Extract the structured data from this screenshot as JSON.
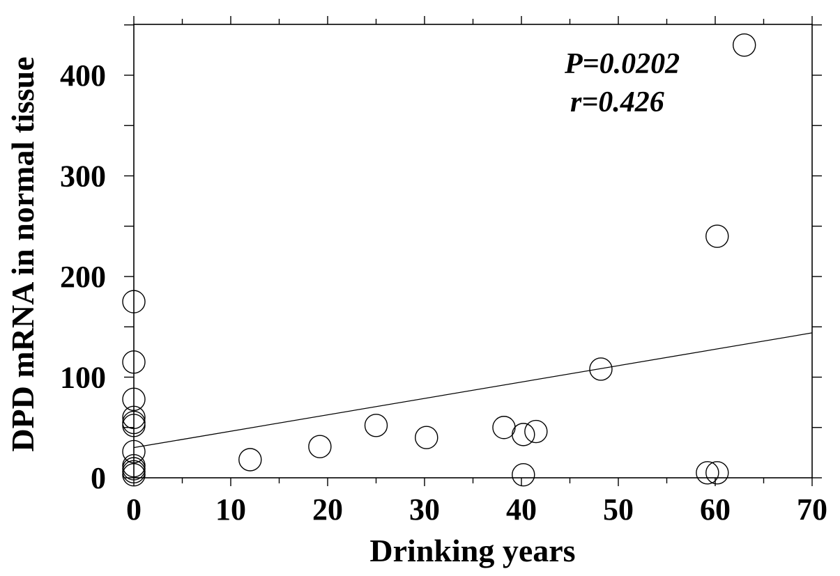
{
  "chart_data": {
    "type": "scatter",
    "title": "",
    "xlabel": "Drinking years",
    "ylabel": "DPD mRNA  in normal tissue",
    "xlim": [
      0,
      70
    ],
    "ylim": [
      0,
      450
    ],
    "x_ticks": [
      0,
      10,
      20,
      30,
      40,
      50,
      60,
      70
    ],
    "x_tick_labels": [
      "0",
      "10",
      "20",
      "30",
      "40",
      "50",
      "60",
      "70"
    ],
    "y_ticks": [
      0,
      100,
      200,
      300,
      400
    ],
    "y_tick_labels": [
      "0",
      "100",
      "200",
      "300",
      "400"
    ],
    "x_minor_step": 5,
    "y_minor_step": 50,
    "grid": false,
    "series": [
      {
        "points": [
          {
            "x": 0,
            "y": 175
          },
          {
            "x": 0,
            "y": 115
          },
          {
            "x": 0,
            "y": 78
          },
          {
            "x": 0,
            "y": 60
          },
          {
            "x": 0,
            "y": 55
          },
          {
            "x": 0,
            "y": 52
          },
          {
            "x": 0,
            "y": 26
          },
          {
            "x": 0,
            "y": 12
          },
          {
            "x": 0,
            "y": 9
          },
          {
            "x": 0,
            "y": 6
          },
          {
            "x": 0,
            "y": 3
          },
          {
            "x": 12,
            "y": 18
          },
          {
            "x": 19.2,
            "y": 31
          },
          {
            "x": 25,
            "y": 52
          },
          {
            "x": 30.2,
            "y": 40
          },
          {
            "x": 38.2,
            "y": 50
          },
          {
            "x": 40.2,
            "y": 43
          },
          {
            "x": 41.5,
            "y": 46
          },
          {
            "x": 40.2,
            "y": 3
          },
          {
            "x": 48.2,
            "y": 108
          },
          {
            "x": 59.2,
            "y": 5
          },
          {
            "x": 60.2,
            "y": 5
          },
          {
            "x": 60.2,
            "y": 240
          },
          {
            "x": 63,
            "y": 430
          }
        ]
      }
    ],
    "trendline": {
      "x": [
        0,
        70
      ],
      "y": [
        30,
        144
      ]
    },
    "annotations": [
      "P=0.0202",
      "r=0.426"
    ]
  }
}
